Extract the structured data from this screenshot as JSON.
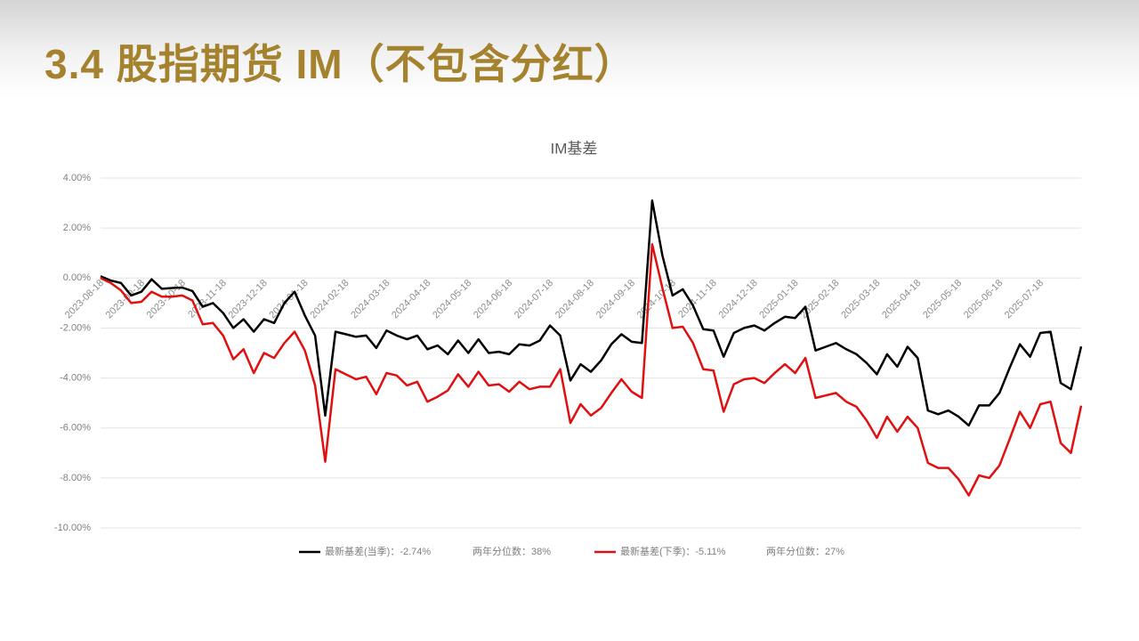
{
  "header": {
    "title": "3.4 股指期货 IM（不包含分红）"
  },
  "chart_data": {
    "type": "line",
    "title": "IM基差",
    "categories": [
      "2023-08-18",
      null,
      null,
      null,
      "2023-09-18",
      null,
      null,
      null,
      "2023-10-18",
      null,
      null,
      null,
      "2023-11-18",
      null,
      null,
      null,
      "2023-12-18",
      null,
      null,
      null,
      "2024-01-18",
      null,
      null,
      null,
      "2024-02-18",
      null,
      null,
      null,
      "2024-03-18",
      null,
      null,
      null,
      "2024-04-18",
      null,
      null,
      null,
      "2024-05-18",
      null,
      null,
      null,
      "2024-06-18",
      null,
      null,
      null,
      "2024-07-18",
      null,
      null,
      null,
      "2024-08-18",
      null,
      null,
      null,
      "2024-09-18",
      null,
      null,
      null,
      "2024-10-18",
      null,
      null,
      null,
      "2024-11-18",
      null,
      null,
      null,
      "2024-12-18",
      null,
      null,
      null,
      "2025-01-18",
      null,
      null,
      null,
      "2025-02-18",
      null,
      null,
      null,
      "2025-03-18",
      null,
      null,
      null,
      "2025-04-18",
      null,
      null,
      null,
      "2025-05-18",
      null,
      null,
      null,
      "2025-06-18",
      null,
      null,
      null,
      "2025-07-18",
      null,
      null,
      null,
      null
    ],
    "series": [
      {
        "name": "最新基差(当季)：-2.74%",
        "legend_note": "两年分位数：38%",
        "color": "#000000",
        "values": [
          0.07,
          -0.1,
          -0.2,
          -0.7,
          -0.55,
          -0.05,
          -0.43,
          -0.4,
          -0.38,
          -0.52,
          -1.15,
          -1.0,
          -1.4,
          -2.0,
          -1.65,
          -2.15,
          -1.65,
          -1.8,
          -1.0,
          -0.55,
          -1.5,
          -2.3,
          -5.5,
          -2.15,
          -2.25,
          -2.35,
          -2.3,
          -2.8,
          -2.1,
          -2.3,
          -2.45,
          -2.3,
          -2.85,
          -2.7,
          -3.05,
          -2.5,
          -3.0,
          -2.45,
          -3.0,
          -2.95,
          -3.05,
          -2.65,
          -2.7,
          -2.5,
          -1.9,
          -2.3,
          -4.1,
          -3.45,
          -3.75,
          -3.3,
          -2.65,
          -2.25,
          -2.55,
          -2.6,
          3.1,
          0.9,
          -0.7,
          -0.45,
          -1.1,
          -2.05,
          -2.1,
          -3.15,
          -2.2,
          -2.0,
          -1.9,
          -2.1,
          -1.8,
          -1.55,
          -1.6,
          -1.15,
          -2.9,
          -2.75,
          -2.6,
          -2.85,
          -3.05,
          -3.4,
          -3.85,
          -3.05,
          -3.55,
          -2.75,
          -3.2,
          -5.3,
          -5.45,
          -5.3,
          -5.55,
          -5.9,
          -5.1,
          -5.1,
          -4.6,
          -3.6,
          -2.65,
          -3.15,
          -2.2,
          -2.15,
          -4.2,
          -4.45,
          -2.74
        ]
      },
      {
        "name": "最新基差(下季)：-5.11%",
        "legend_note": "两年分位数：27%",
        "color": "#e01010",
        "values": [
          0,
          -0.2,
          -0.5,
          -1.0,
          -0.95,
          -0.55,
          -0.75,
          -0.75,
          -0.7,
          -0.9,
          -1.85,
          -1.8,
          -2.3,
          -3.25,
          -2.85,
          -3.8,
          -3.0,
          -3.2,
          -2.6,
          -2.15,
          -2.9,
          -4.3,
          -7.35,
          -3.65,
          -3.85,
          -4.05,
          -3.95,
          -4.65,
          -3.8,
          -3.9,
          -4.3,
          -4.15,
          -4.95,
          -4.75,
          -4.5,
          -3.85,
          -4.35,
          -3.75,
          -4.3,
          -4.25,
          -4.55,
          -4.15,
          -4.45,
          -4.35,
          -4.35,
          -3.65,
          -5.8,
          -5.05,
          -5.5,
          -5.2,
          -4.6,
          -4.05,
          -4.55,
          -4.8,
          1.35,
          -0.4,
          -2.0,
          -1.95,
          -2.6,
          -3.65,
          -3.7,
          -5.35,
          -4.25,
          -4.05,
          -4.0,
          -4.2,
          -3.8,
          -3.45,
          -3.8,
          -3.2,
          -4.8,
          -4.7,
          -4.6,
          -4.95,
          -5.15,
          -5.7,
          -6.4,
          -5.55,
          -6.15,
          -5.55,
          -6.0,
          -7.4,
          -7.6,
          -7.6,
          -8.05,
          -8.7,
          -7.9,
          -8.0,
          -7.5,
          -6.45,
          -5.35,
          -6.0,
          -5.05,
          -4.95,
          -6.6,
          -7.0,
          -5.11
        ]
      }
    ],
    "ylim": [
      -10,
      4
    ],
    "yticks": [
      {
        "value": -10,
        "label": "-10.00%"
      },
      {
        "value": -8,
        "label": "-8.00%"
      },
      {
        "value": -6,
        "label": "-6.00%"
      },
      {
        "value": -4,
        "label": "-4.00%"
      },
      {
        "value": -2,
        "label": "-2.00%"
      },
      {
        "value": 0,
        "label": "0.00%"
      },
      {
        "value": 2,
        "label": "2.00%"
      },
      {
        "value": 4,
        "label": "4.00%"
      }
    ],
    "grid": true,
    "legend": "bottom"
  }
}
